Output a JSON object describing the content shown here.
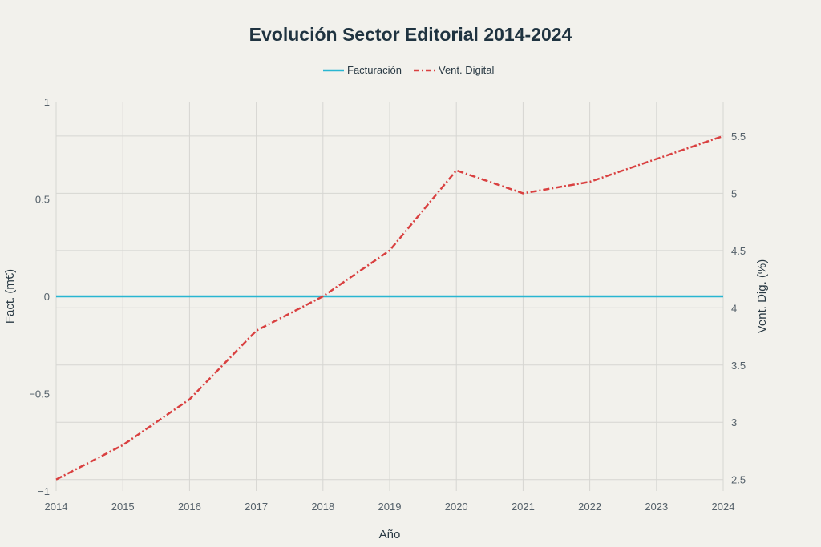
{
  "chart_data": {
    "type": "line",
    "title": "Evolución Sector Editorial 2014-2024",
    "xlabel": "Año",
    "ylabel_left": "Fact. (m€)",
    "ylabel_right": "Vent. Dig. (%)",
    "x": [
      2014,
      2015,
      2016,
      2017,
      2018,
      2019,
      2020,
      2021,
      2022,
      2023,
      2024
    ],
    "x_tick_labels": [
      "2014",
      "2015",
      "2016",
      "2017",
      "2018",
      "2019",
      "2020",
      "2021",
      "2022",
      "2023",
      "2024"
    ],
    "y_left_range": [
      -1,
      1
    ],
    "y_left_tick_labels": [
      "1",
      "0.5",
      "0",
      "−0.5",
      "−1"
    ],
    "y_left_tick_values": [
      1,
      0.5,
      0,
      -0.5,
      -1
    ],
    "y_right_range": [
      2.4,
      5.8
    ],
    "y_right_tick_labels": [
      "5.5",
      "5",
      "4.5",
      "4",
      "3.5",
      "3",
      "2.5"
    ],
    "y_right_tick_values": [
      5.5,
      5,
      4.5,
      4,
      3.5,
      3,
      2.5
    ],
    "grid": true,
    "legend_position": "top-center",
    "series": [
      {
        "name": "Facturación",
        "axis": "left",
        "color": "#29b6d1",
        "style": "solid",
        "values": [
          0,
          0,
          0,
          0,
          0,
          0,
          0,
          0,
          0,
          0,
          0
        ]
      },
      {
        "name": "Vent. Digital",
        "axis": "right",
        "color": "#d94040",
        "style": "dashdot",
        "values": [
          2.5,
          2.8,
          3.2,
          3.8,
          4.1,
          4.5,
          5.2,
          5.0,
          5.1,
          5.3,
          5.5
        ]
      }
    ]
  }
}
